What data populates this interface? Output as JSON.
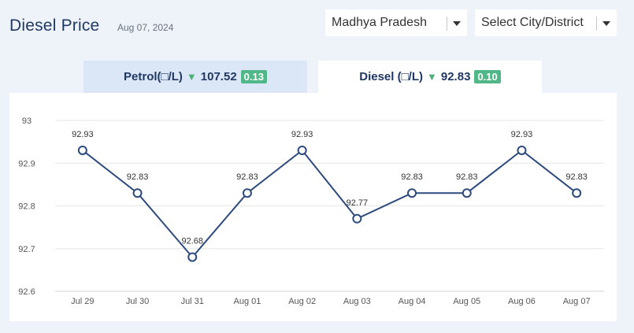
{
  "header": {
    "title": "Diesel Price",
    "date": "Aug 07, 2024"
  },
  "selectors": {
    "state": "Madhya Pradesh",
    "city": "Select City/District"
  },
  "tabs": [
    {
      "label": "Petrol(□/L)",
      "price": "107.52",
      "change": "0.13",
      "active": false
    },
    {
      "label": "Diesel (□/L)",
      "price": "92.83",
      "change": "0.10",
      "active": true
    }
  ],
  "colors": {
    "line": "#2d4a7c",
    "badge": "#52b788",
    "down_arrow": "#4caf7a"
  },
  "chart_data": {
    "type": "line",
    "categories": [
      "Jul 29",
      "Jul 30",
      "Jul 31",
      "Aug 01",
      "Aug 02",
      "Aug 03",
      "Aug 04",
      "Aug 05",
      "Aug 06",
      "Aug 07"
    ],
    "values": [
      92.93,
      92.83,
      92.68,
      92.83,
      92.93,
      92.77,
      92.83,
      92.83,
      92.93,
      92.83
    ],
    "value_labels": [
      "92.93",
      "92.83",
      "92.68",
      "92.83",
      "92.93",
      "92.77",
      "92.83",
      "92.83",
      "92.93",
      "92.83"
    ],
    "ylim": [
      92.6,
      93
    ],
    "yticks": [
      "92.6",
      "92.7",
      "92.8",
      "92.9",
      "93"
    ],
    "grid": true,
    "markers": "hollow-circle"
  }
}
